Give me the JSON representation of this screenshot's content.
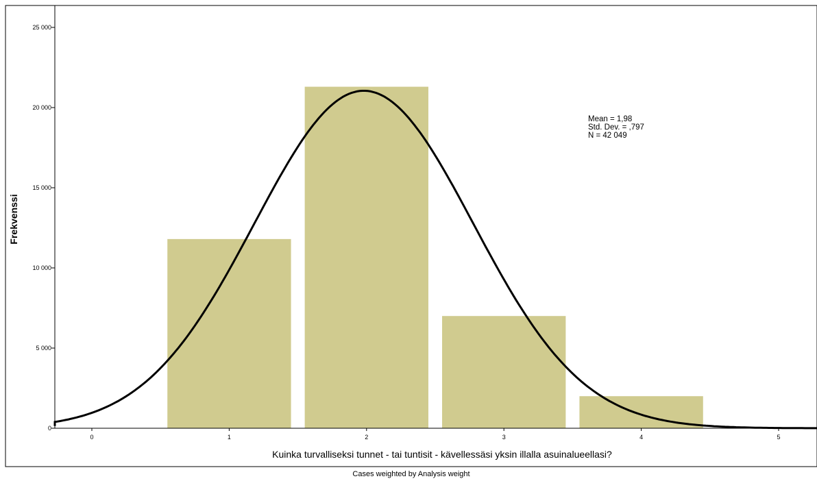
{
  "chart_data": {
    "type": "bar",
    "subtype": "histogram-with-normal-curve",
    "xlabel": "Kuinka turvalliseksi tunnet - tai tuntisit - kävellessäsi yksin illalla asuinalueellasi?",
    "ylabel": "Frekvenssi",
    "footer": "Cases weighted by Analysis weight",
    "x_ticks": [
      "0",
      "1",
      "2",
      "3",
      "4",
      "5"
    ],
    "y_ticks": [
      "0",
      "5 000",
      "10 000",
      "15 000",
      "20 000",
      "25 000"
    ],
    "xlim": [
      -0.55,
      5.55
    ],
    "ylim": [
      0,
      25000
    ],
    "categories": [
      "1",
      "2",
      "3",
      "4"
    ],
    "values": [
      11800,
      21300,
      7000,
      2000
    ],
    "bar_color": "#d0cb8f",
    "curve_color": "#000000",
    "grid": false,
    "legend": "none",
    "stats": {
      "mean_line": "Mean = 1,98",
      "sd_line": "Std. Dev. = ,797",
      "n_line": "N = 42 049",
      "mean": 1.98,
      "sd": 0.797,
      "n": 42049
    }
  }
}
